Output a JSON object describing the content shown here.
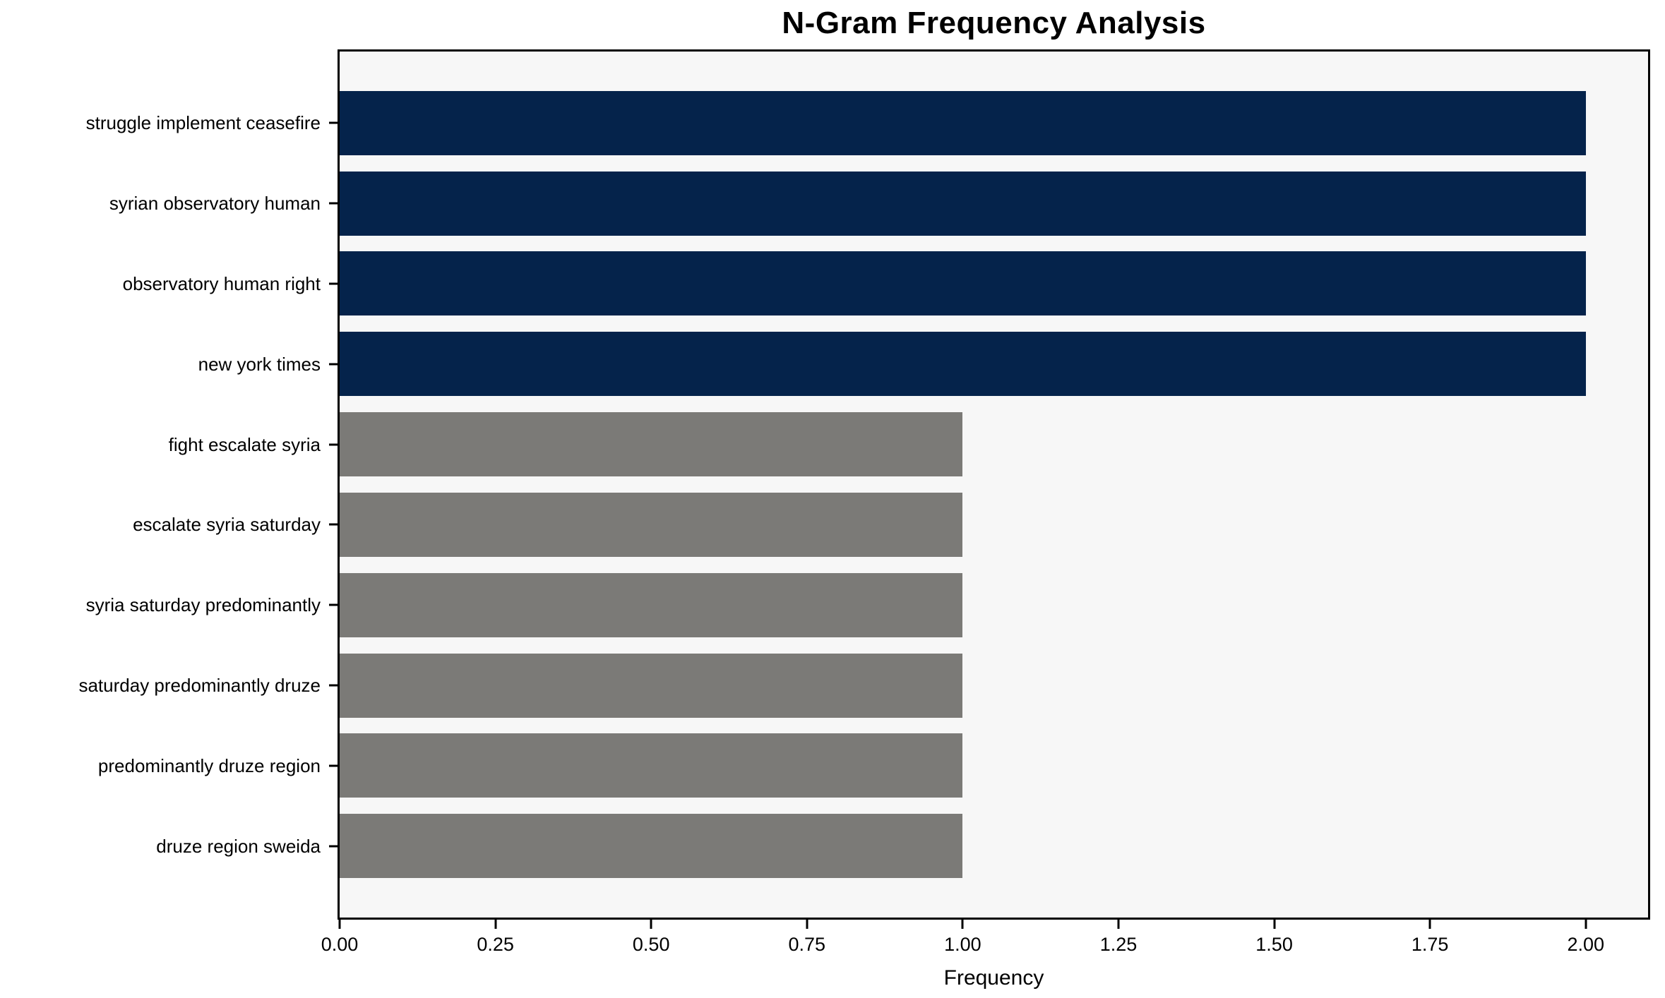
{
  "chart_data": {
    "type": "bar",
    "orientation": "horizontal",
    "title": "N-Gram Frequency Analysis",
    "xlabel": "Frequency",
    "ylabel": "",
    "categories": [
      "struggle implement ceasefire",
      "syrian observatory human",
      "observatory human right",
      "new york times",
      "fight escalate syria",
      "escalate syria saturday",
      "syria saturday predominantly",
      "saturday predominantly druze",
      "predominantly druze region",
      "druze region sweida"
    ],
    "values": [
      2,
      2,
      2,
      2,
      1,
      1,
      1,
      1,
      1,
      1
    ],
    "bar_colors": [
      "#05234b",
      "#05234b",
      "#05234b",
      "#05234b",
      "#7b7a77",
      "#7b7a77",
      "#7b7a77",
      "#7b7a77",
      "#7b7a77",
      "#7b7a77"
    ],
    "xlim": [
      0,
      2.1
    ],
    "xticks": {
      "values": [
        0,
        0.25,
        0.5,
        0.75,
        1.0,
        1.25,
        1.5,
        1.75,
        2.0
      ],
      "labels": [
        "0.00",
        "0.25",
        "0.50",
        "0.75",
        "1.00",
        "1.25",
        "1.50",
        "1.75",
        "2.00"
      ]
    },
    "grid": false,
    "legend": null,
    "colors": {
      "highlight": "#05234b",
      "default": "#7b7a77",
      "plot_background": "#f7f7f7",
      "figure_background": "#ffffff",
      "axis": "#000000",
      "text": "#000000"
    }
  }
}
